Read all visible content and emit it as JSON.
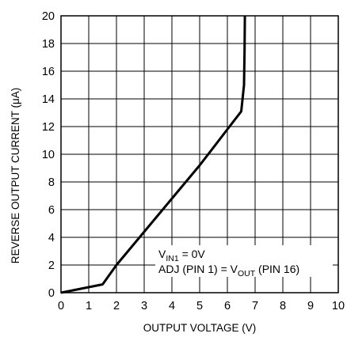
{
  "chart_data": {
    "type": "line",
    "title": "",
    "xlabel": "OUTPUT VOLTAGE (V)",
    "ylabel": "REVERSE OUTPUT CURRENT (μA)",
    "xlim": [
      0,
      10
    ],
    "ylim": [
      0,
      20
    ],
    "grid": true,
    "xticks": [
      "0",
      "1",
      "2",
      "3",
      "4",
      "5",
      "6",
      "7",
      "8",
      "9",
      "10"
    ],
    "yticks": [
      "0",
      "2",
      "4",
      "6",
      "8",
      "10",
      "12",
      "14",
      "16",
      "18",
      "20"
    ],
    "series": [
      {
        "name": "",
        "x": [
          0,
          0.5,
          1.0,
          1.5,
          2.0,
          2.5,
          3.0,
          3.5,
          4.0,
          4.5,
          5.0,
          5.5,
          6.0,
          6.5,
          6.6,
          6.62,
          6.63
        ],
        "y": [
          0,
          0.2,
          0.4,
          0.6,
          2.0,
          3.2,
          4.4,
          5.6,
          6.8,
          8.0,
          9.2,
          10.5,
          11.8,
          13.1,
          15.0,
          17.5,
          20
        ]
      }
    ],
    "annotations": {
      "line1_prefix": "V",
      "line1_sub": "IN1",
      "line1_suffix": " = 0V",
      "line2_prefix": "ADJ (PIN 1) = V",
      "line2_sub": "OUT",
      "line2_suffix": " (PIN 16)"
    }
  }
}
